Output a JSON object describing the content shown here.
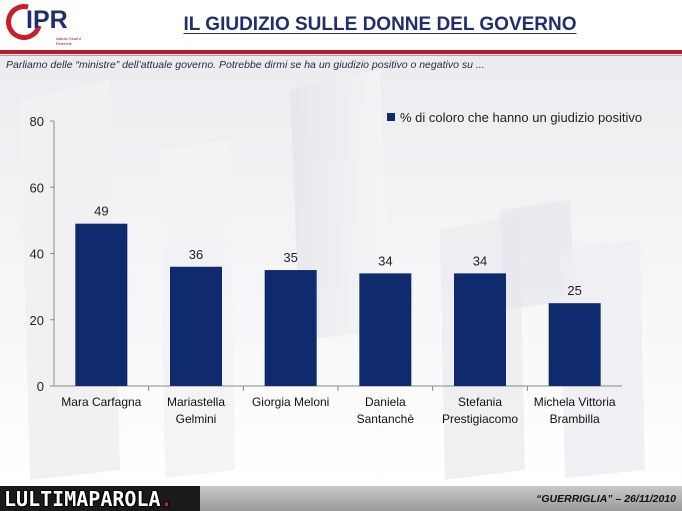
{
  "header": {
    "logo_text": "IPR",
    "logo_subtext": "Istituto Studi e Ricerche",
    "title": "IL GIUDIZIO SULLE DONNE DEL GOVERNO",
    "subtitle": "Parliamo delle “ministre” dell’attuale governo. Potrebbe dirmi se ha un giudizio positivo o negativo su ..."
  },
  "chart_data": {
    "type": "bar",
    "categories": [
      "Mara Carfagna",
      "Mariastella Gelmini",
      "Giorgia Meloni",
      "Daniela Santanchè",
      "Stefania Prestigiacomo",
      "Michela Vittoria Brambilla"
    ],
    "category_lines": [
      [
        "Mara Carfagna"
      ],
      [
        "Mariastella",
        "Gelmini"
      ],
      [
        "Giorgia Meloni"
      ],
      [
        "Daniela",
        "Santanchè"
      ],
      [
        "Stefania",
        "Prestigiacomo"
      ],
      [
        "Michela Vittoria",
        "Brambilla"
      ]
    ],
    "series": [
      {
        "name": "% di coloro che hanno un giudizio positivo",
        "values": [
          49,
          36,
          35,
          34,
          34,
          25
        ]
      }
    ],
    "ylim": [
      0,
      80
    ],
    "yticks": [
      0,
      20,
      40,
      60,
      80
    ],
    "data_labels": true,
    "legend_position": "top-right",
    "bar_color": "#102a6e",
    "grid": false
  },
  "footer": {
    "brand_prefix": "L",
    "brand_main": "ULTIMAPAROLA",
    "brand_dot": ".",
    "source": "“GUERRIGLIA” – 26/11/2010"
  },
  "colors": {
    "accent": "#b41e2a",
    "title": "#1f2f6b",
    "bar": "#102a6e"
  }
}
